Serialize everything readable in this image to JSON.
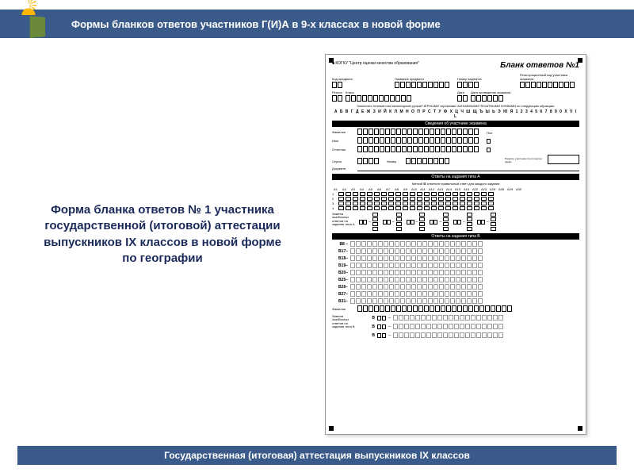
{
  "header": {
    "title": "Формы бланков ответов участников Г(И)А в 9-х классах в новой форме"
  },
  "desc": "Форма бланка ответов № 1 участника государственной (итоговой) аттестации выпускников IX классов в новой форме по географии",
  "form": {
    "org": "КОГКУ \"Центр оценки качества образования\"",
    "title": "Бланк ответов №1",
    "fields": {
      "f1": "Код предмета",
      "f2": "Название предмета",
      "f3": "Номер варианта",
      "f4": "Регистрационный код участника экзамена",
      "f5": "Регион",
      "f6": "Класс",
      "f7": "Дата",
      "f8": "Дата проведения экзамена",
      "instr": "Заполнять гелевой или капиллярной ручкой ЧЁРНЫМИ чернилами ЗАГЛАВНЫМИ ПЕЧАТНЫМИ БУКВАМИ по следующим образцам:"
    },
    "alphabet": "А Б В Г Д Е Ж З И Й К Л М Н О П Р С Т У Ф Х Ц Ч Ш Щ Ъ Ы Ь Э Ю Я 1 2 3 4 5 6 7 8 9 0 X V I L",
    "section_participant": "Сведения об участнике экзамена",
    "pfields": {
      "p1": "Фамилия",
      "p2": "Имя",
      "p3": "Отчество",
      "p4": "Серия",
      "p5": "Номер",
      "p6": "Пол",
      "p7": "Подпись участника строго внутри рамки"
    },
    "section_a": "Ответы на задания типа А",
    "a_instr": "Меткой ⊠ отметьте правильный ответ для каждого задания",
    "a_cols": [
      "A1",
      "A2",
      "A3",
      "A4",
      "A5",
      "A6",
      "A7",
      "A8",
      "A9",
      "A10",
      "A11",
      "A12",
      "A13",
      "A14",
      "A15",
      "A16",
      "A22",
      "A23",
      "A25",
      "A28",
      "A29",
      "A30"
    ],
    "replace_a": "Замена ошибочных ответов на задания типа А",
    "section_b": "Ответы на задания типа В",
    "b_rows": [
      "B8 –",
      "B17–",
      "B18–",
      "B19–",
      "B20–",
      "B25–",
      "B26–",
      "B27–",
      "B31–"
    ],
    "replace_b": "Замена ошибочных ответов на задания типа В"
  },
  "footer": {
    "text": "Государственная (итоговая) аттестация выпускников IX классов"
  },
  "colors": {
    "header_bg": "#3a5a8a",
    "title_color": "#1a2a5a"
  }
}
